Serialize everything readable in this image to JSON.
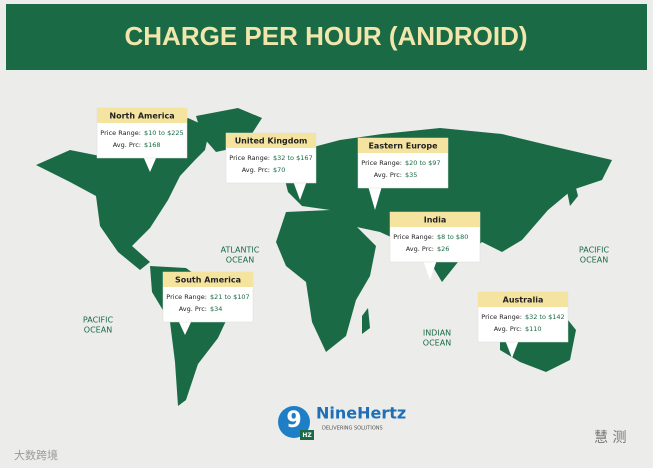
{
  "header": {
    "title": "CHARGE PER HOUR (ANDROID)"
  },
  "regions": [
    {
      "name": "North America",
      "range_label": "Price Range:",
      "range": "$10 to $225",
      "avg_label": "Avg. Prc:",
      "avg": "$168"
    },
    {
      "name": "United Kingdom",
      "range_label": "Price Range:",
      "range": "$32 to $167",
      "avg_label": "Avg. Prc:",
      "avg": "$70"
    },
    {
      "name": "Eastern Europe",
      "range_label": "Price Range:",
      "range": "$20 to $97",
      "avg_label": "Avg. Prc:",
      "avg": "$35"
    },
    {
      "name": "India",
      "range_label": "Price Range:",
      "range": "$8 to $80",
      "avg_label": "Avg. Prc:",
      "avg": "$26"
    },
    {
      "name": "South America",
      "range_label": "Price Range:",
      "range": "$21 to $107",
      "avg_label": "Avg. Prc:",
      "avg": "$34"
    },
    {
      "name": "Australia",
      "range_label": "Price Range:",
      "range": "$32 to $142",
      "avg_label": "Avg. Prc:",
      "avg": "$110"
    }
  ],
  "oceans": [
    {
      "line1": "ATLANTIC",
      "line2": "OCEAN"
    },
    {
      "line1": "PACIFIC",
      "line2": "OCEAN"
    },
    {
      "line1": "INDIAN",
      "line2": "OCEAN"
    },
    {
      "line1": "PACIFIC",
      "line2": "OCEAN"
    }
  ],
  "logo": {
    "mark": "9",
    "badge": "HZ",
    "name": "NineHertz",
    "tagline": "DELIVERING SOLUTIONS"
  },
  "watermarks": {
    "left": "大数跨境",
    "right": "慧 测"
  }
}
